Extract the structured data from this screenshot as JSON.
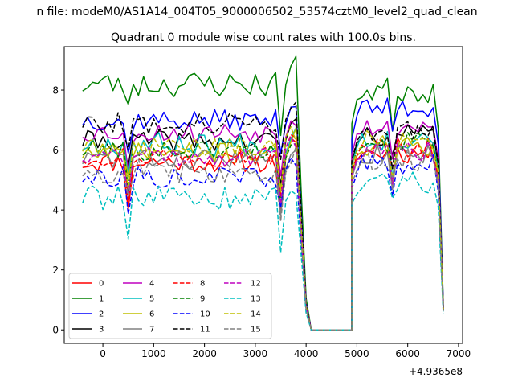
{
  "figure": {
    "suptitle": "n file: modeM0/AS1A14_004T05_9000006502_53574cztM0_level2_quad_clean",
    "title": "Quadrant 0 module wise count rates with 100.0s bins."
  },
  "chart_data": {
    "type": "line",
    "title": "Quadrant 0 module wise count rates with 100.0s bins.",
    "xlabel": "",
    "ylabel": "",
    "x_offset_label": "+4.9365e8",
    "xlim": [
      -760,
      7080
    ],
    "ylim": [
      -0.45,
      9.45
    ],
    "x_ticks": [
      0,
      1000,
      2000,
      3000,
      4000,
      5000,
      6000,
      7000
    ],
    "x_tick_labels": [
      "0",
      "1000",
      "2000",
      "3000",
      "4000",
      "5000",
      "6000",
      "7000"
    ],
    "y_ticks": [
      0,
      2,
      4,
      6,
      8
    ],
    "y_tick_labels": [
      "0",
      "2",
      "4",
      "6",
      "8"
    ],
    "grid": false,
    "legend": {
      "placement": "lower-left",
      "columns": 4
    },
    "segments": {
      "seg1": {
        "x_start": -400,
        "x_step": 100,
        "count": 43,
        "x_end": 3800
      },
      "gap_fall": {
        "x": [
          3800,
          3900,
          4000,
          4100
        ],
        "level_fraction": [
          1.0,
          0.58,
          0.13,
          0.0
        ]
      },
      "zero_stretch": {
        "x_start": 4100,
        "x_end": 4900,
        "value": 0
      },
      "seg2": {
        "x_start": 4900,
        "x_step": 100,
        "count": 17,
        "x_end": 6500
      },
      "end_fall": {
        "x": [
          6600,
          6700
        ],
        "level_fraction": [
          0.84,
          0.11
        ]
      }
    },
    "series": [
      {
        "name": "0",
        "color": "#ff0000",
        "style": "solid",
        "level1": 5.6,
        "level2": 5.9,
        "amp": 0.35,
        "seed": 11
      },
      {
        "name": "1",
        "color": "#008000",
        "style": "solid",
        "level1": 8.2,
        "level2": 8.0,
        "amp": 0.45,
        "seed": 23
      },
      {
        "name": "2",
        "color": "#0000ff",
        "style": "solid",
        "level1": 7.0,
        "level2": 7.4,
        "amp": 0.35,
        "seed": 37
      },
      {
        "name": "3",
        "color": "#000000",
        "style": "solid",
        "level1": 6.3,
        "level2": 6.5,
        "amp": 0.35,
        "seed": 41
      },
      {
        "name": "4",
        "color": "#bf00bf",
        "style": "solid",
        "level1": 6.6,
        "level2": 6.8,
        "amp": 0.35,
        "seed": 53
      },
      {
        "name": "5",
        "color": "#00bfbf",
        "style": "solid",
        "level1": 6.2,
        "level2": 6.4,
        "amp": 0.4,
        "seed": 67
      },
      {
        "name": "6",
        "color": "#bfbf00",
        "style": "solid",
        "level1": 5.9,
        "level2": 6.1,
        "amp": 0.35,
        "seed": 71
      },
      {
        "name": "7",
        "color": "#808080",
        "style": "solid",
        "level1": 5.7,
        "level2": 5.9,
        "amp": 0.35,
        "seed": 83
      },
      {
        "name": "8",
        "color": "#ff0000",
        "style": "dashed",
        "level1": 5.8,
        "level2": 6.1,
        "amp": 0.35,
        "seed": 97
      },
      {
        "name": "9",
        "color": "#008000",
        "style": "dashed",
        "level1": 6.0,
        "level2": 6.3,
        "amp": 0.35,
        "seed": 101
      },
      {
        "name": "10",
        "color": "#0000ff",
        "style": "dashed",
        "level1": 5.1,
        "level2": 5.5,
        "amp": 0.35,
        "seed": 113
      },
      {
        "name": "11",
        "color": "#000000",
        "style": "dashed",
        "level1": 6.9,
        "level2": 6.6,
        "amp": 0.35,
        "seed": 127
      },
      {
        "name": "12",
        "color": "#bf00bf",
        "style": "dashed",
        "level1": 5.8,
        "level2": 6.0,
        "amp": 0.35,
        "seed": 131
      },
      {
        "name": "13",
        "color": "#00bfbf",
        "style": "dashed",
        "level1": 4.4,
        "level2": 4.9,
        "amp": 0.4,
        "seed": 139
      },
      {
        "name": "14",
        "color": "#bfbf00",
        "style": "dashed",
        "level1": 6.1,
        "level2": 6.3,
        "amp": 0.35,
        "seed": 149
      },
      {
        "name": "15",
        "color": "#808080",
        "style": "dashed",
        "level1": 5.3,
        "level2": 5.7,
        "amp": 0.4,
        "seed": 157
      }
    ]
  }
}
